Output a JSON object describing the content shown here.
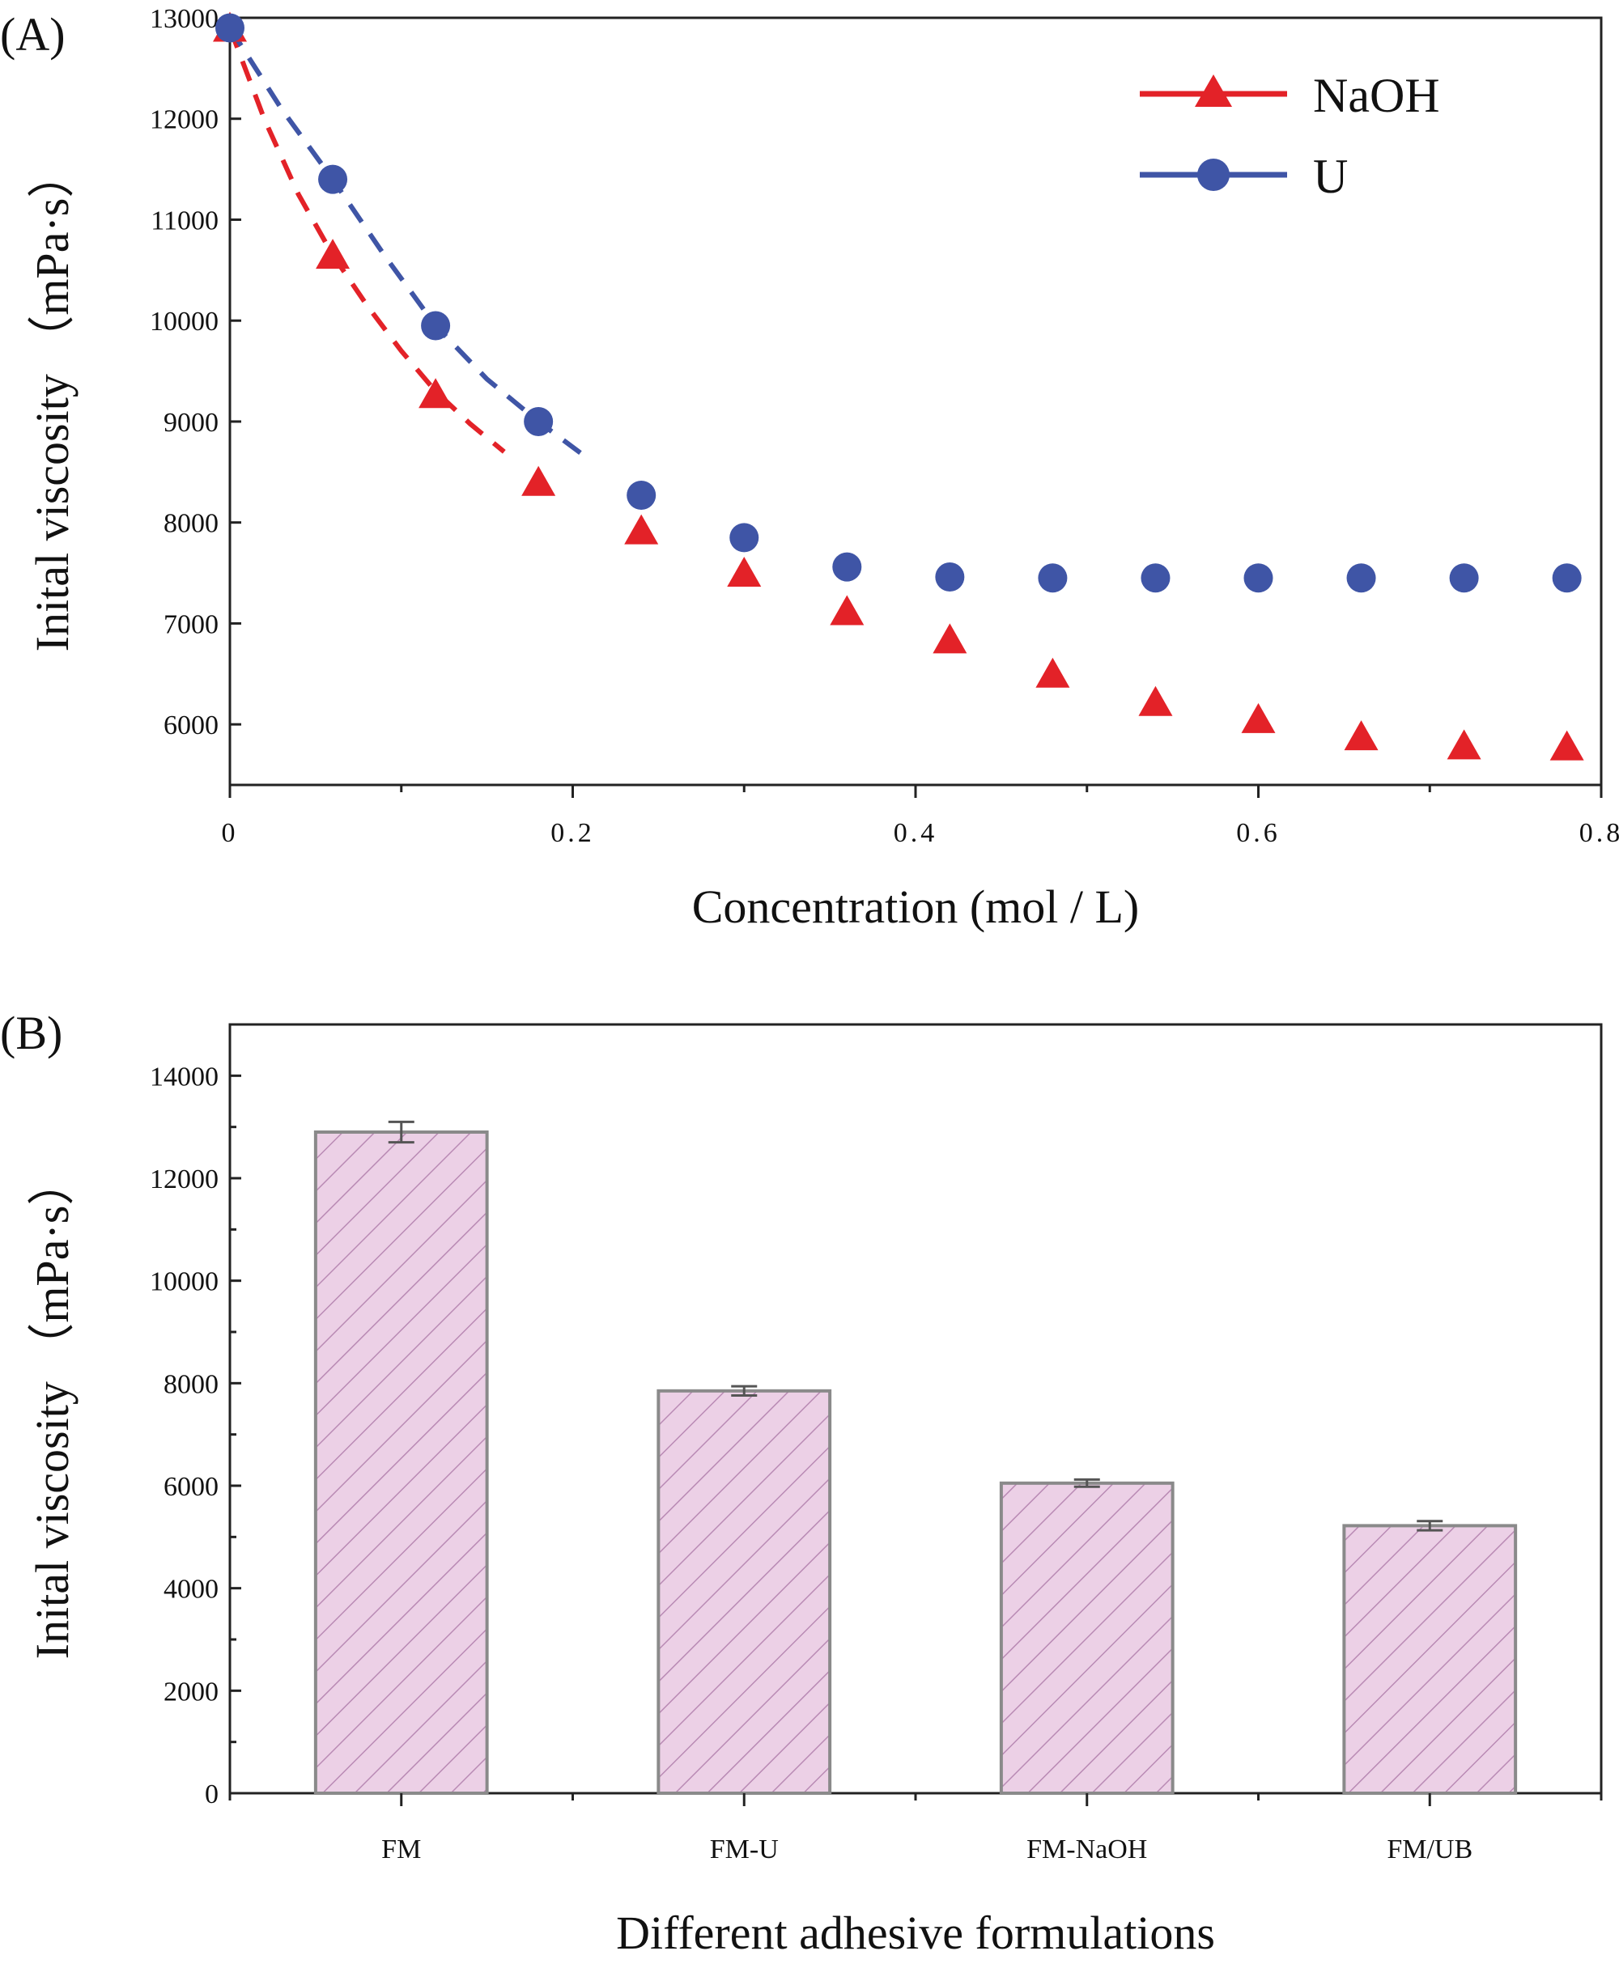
{
  "colors": {
    "naoh": "#e32228",
    "u": "#3f55a6",
    "bar_fill": "#ecd0e6",
    "bar_hatch": "#b98ab4",
    "bar_edge": "#8a8a8a",
    "axis": "#222222"
  },
  "chart_data": [
    {
      "type": "scatter",
      "panel_label": "(A)",
      "title": "",
      "xlabel": "Concentration (mol / L)",
      "ylabel": "Inital viscosity （mPa·s）",
      "xlim": [
        0,
        0.8
      ],
      "ylim": [
        5400,
        13000
      ],
      "x_ticks": [
        0,
        0.2,
        0.4,
        0.6,
        0.8
      ],
      "x_tick_labels": [
        "0",
        "0.2",
        "0.4",
        "0.6",
        "0.8"
      ],
      "y_ticks": [
        6000,
        7000,
        8000,
        9000,
        10000,
        11000,
        12000,
        13000
      ],
      "y_tick_labels": [
        "6000",
        "7000",
        "8000",
        "9000",
        "10000",
        "11000",
        "12000",
        "13000"
      ],
      "legend_position": "top-right",
      "series": [
        {
          "name": "NaOH",
          "marker": "triangle",
          "color_key": "naoh",
          "x": [
            0,
            0.06,
            0.12,
            0.18,
            0.24,
            0.3,
            0.36,
            0.42,
            0.48,
            0.54,
            0.6,
            0.66,
            0.72,
            0.78
          ],
          "y": [
            12900,
            10650,
            9270,
            8400,
            7920,
            7500,
            7120,
            6840,
            6500,
            6220,
            6050,
            5880,
            5790,
            5780
          ],
          "fit_x": [
            0,
            0.02,
            0.04,
            0.06,
            0.08,
            0.1,
            0.12,
            0.14,
            0.16
          ],
          "fit_y": [
            12900,
            12000,
            11250,
            10650,
            10150,
            9700,
            9300,
            8980,
            8700
          ]
        },
        {
          "name": "U",
          "marker": "circle",
          "color_key": "u",
          "x": [
            0,
            0.06,
            0.12,
            0.18,
            0.24,
            0.3,
            0.36,
            0.42,
            0.48,
            0.54,
            0.6,
            0.66,
            0.72,
            0.78
          ],
          "y": [
            12900,
            11400,
            9950,
            9000,
            8270,
            7850,
            7560,
            7460,
            7450,
            7450,
            7450,
            7450,
            7450,
            7450
          ],
          "fit_x": [
            0,
            0.03,
            0.06,
            0.09,
            0.12,
            0.15,
            0.18,
            0.21
          ],
          "fit_y": [
            12900,
            12100,
            11400,
            10650,
            9950,
            9420,
            9000,
            8620
          ]
        }
      ]
    },
    {
      "type": "bar",
      "panel_label": "(B)",
      "title": "",
      "xlabel": "Different adhesive formulations",
      "ylabel": "Inital viscosity （mPa·s）",
      "ylim": [
        0,
        15000
      ],
      "y_ticks": [
        0,
        2000,
        4000,
        6000,
        8000,
        10000,
        12000,
        14000
      ],
      "y_tick_labels": [
        "0",
        "2000",
        "4000",
        "6000",
        "8000",
        "10000",
        "12000",
        "14000"
      ],
      "categories": [
        "FM",
        "FM-U",
        "FM-NaOH",
        "FM/UB"
      ],
      "values": [
        12900,
        7850,
        6050,
        5220
      ],
      "errors": [
        200,
        90,
        70,
        90
      ]
    }
  ]
}
